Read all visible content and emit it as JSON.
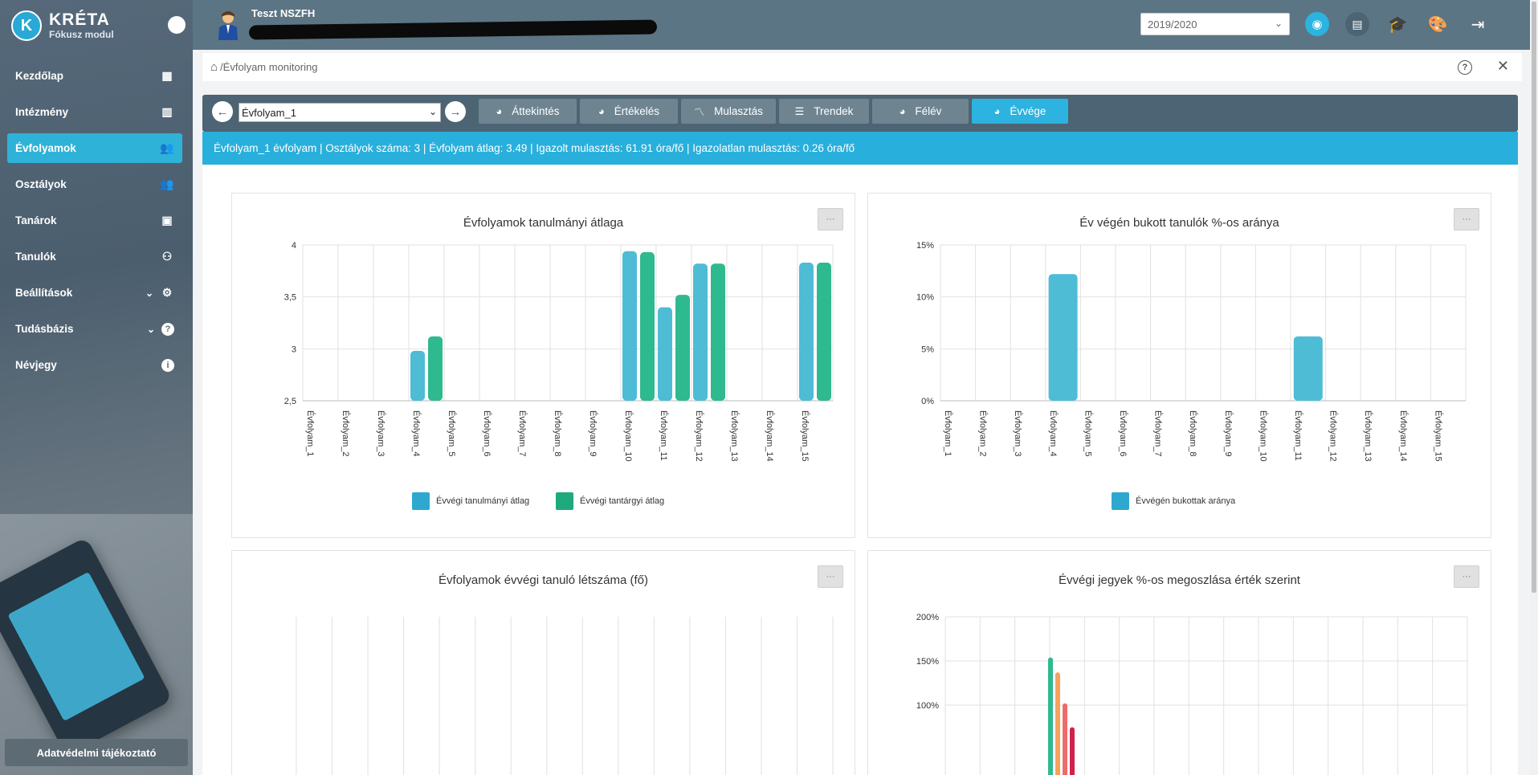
{
  "brand": {
    "name": "KRÉTA",
    "module": "Fókusz modul",
    "logo_letter": "K"
  },
  "sidebar": {
    "items": [
      {
        "label": "Kezdőlap",
        "icon": "dashboard-icon"
      },
      {
        "label": "Intézmény",
        "icon": "building-icon"
      },
      {
        "label": "Évfolyamok",
        "icon": "group-icon",
        "active": true
      },
      {
        "label": "Osztályok",
        "icon": "group-icon"
      },
      {
        "label": "Tanárok",
        "icon": "contact-card-icon"
      },
      {
        "label": "Tanulók",
        "icon": "students-icon"
      },
      {
        "label": "Beállítások",
        "icon": "gear-icon",
        "expandable": true
      },
      {
        "label": "Tudásbázis",
        "icon": "help-icon",
        "expandable": true
      },
      {
        "label": "Névjegy",
        "icon": "info-icon"
      }
    ],
    "privacy_label": "Adatvédelmi tájékoztató"
  },
  "topbar": {
    "user_name": "Teszt NSZFH",
    "school_year": "2019/2020"
  },
  "breadcrumb": {
    "path": "/Évfolyam monitoring"
  },
  "toolbar": {
    "selected": "Évfolyam_1",
    "tabs": [
      {
        "label": "Áttekintés",
        "icon": "pie-icon"
      },
      {
        "label": "Értékelés",
        "icon": "pie-icon"
      },
      {
        "label": "Mulasztás",
        "icon": "trend-icon"
      },
      {
        "label": "Trendek",
        "icon": "list-icon"
      },
      {
        "label": "Félév",
        "icon": "pie-icon"
      },
      {
        "label": "Évvége",
        "icon": "pie-icon",
        "active": true
      }
    ]
  },
  "info": {
    "text": "Évfolyam_1 évfolyam | Osztályok száma: 3 | Évfolyam átlag: 3.49 | Igazolt mulasztás: 61.91 óra/fő | Igazolatlan mulasztás: 0.26 óra/fő"
  },
  "colors": {
    "blue": "#4ebcd5",
    "green": "#2fb98f",
    "orange": "#f6a25c",
    "red": "#ee6b6b",
    "crimson": "#d1224b",
    "accent": "#2db3df"
  },
  "chart_data": [
    {
      "type": "bar",
      "title": "Évfolyamok tanulmányi átlaga",
      "categories": [
        "Évfolyam_1",
        "Évfolyam_2",
        "Évfolyam_3",
        "Évfolyam_4",
        "Évfolyam_5",
        "Évfolyam_6",
        "Évfolyam_7",
        "Évfolyam_8",
        "Évfolyam_9",
        "Évfolyam_10",
        "Évfolyam_11",
        "Évfolyam_12",
        "Évfolyam_13",
        "Évfolyam_14",
        "Évfolyam_15"
      ],
      "ylim": [
        2.5,
        4
      ],
      "yticks": [
        "4",
        "3,5",
        "3",
        "2,5"
      ],
      "ytick_values": [
        4,
        3.5,
        3,
        2.5
      ],
      "series": [
        {
          "name": "Évvégi tanulmányi átlag",
          "color": "#4ebcd5",
          "values": [
            null,
            null,
            null,
            2.98,
            null,
            null,
            null,
            null,
            null,
            3.94,
            3.4,
            3.82,
            null,
            null,
            3.83
          ]
        },
        {
          "name": "Évvégi tantárgyi átlag",
          "color": "#2fb98f",
          "values": [
            null,
            null,
            null,
            3.12,
            null,
            null,
            null,
            null,
            null,
            3.93,
            3.52,
            3.82,
            null,
            null,
            3.83
          ]
        }
      ]
    },
    {
      "type": "bar",
      "title": "Év végén bukott tanulók %-os aránya",
      "categories": [
        "Évfolyam_1",
        "Évfolyam_2",
        "Évfolyam_3",
        "Évfolyam_4",
        "Évfolyam_5",
        "Évfolyam_6",
        "Évfolyam_7",
        "Évfolyam_8",
        "Évfolyam_9",
        "Évfolyam_10",
        "Évfolyam_11",
        "Évfolyam_12",
        "Évfolyam_13",
        "Évfolyam_14",
        "Évfolyam_15"
      ],
      "ylim": [
        0,
        15
      ],
      "yticks": [
        "15%",
        "10%",
        "5%",
        "0%"
      ],
      "ytick_values": [
        15,
        10,
        5,
        0
      ],
      "series": [
        {
          "name": "Évvégén bukottak aránya",
          "color": "#4ebcd5",
          "values": [
            0,
            0,
            0,
            12.2,
            0,
            0,
            0,
            0,
            0,
            0,
            6.2,
            0,
            0,
            0,
            0
          ]
        }
      ]
    },
    {
      "type": "bar",
      "title": "Évfolyamok évvégi tanuló létszáma (fő)",
      "series": []
    },
    {
      "type": "bar",
      "title": "Évvégi jegyek %-os megoszlása érték szerint",
      "ylim": [
        0,
        200
      ],
      "yticks": [
        "200%",
        "150%",
        "100%"
      ],
      "ytick_values": [
        200,
        150,
        100
      ],
      "series": [
        {
          "color": "#2fb98f",
          "values": [
            154
          ]
        },
        {
          "color": "#f6a25c",
          "values": [
            137
          ]
        },
        {
          "color": "#ee6b6b",
          "values": [
            102
          ]
        },
        {
          "color": "#d1224b",
          "values": [
            75
          ]
        }
      ]
    }
  ]
}
